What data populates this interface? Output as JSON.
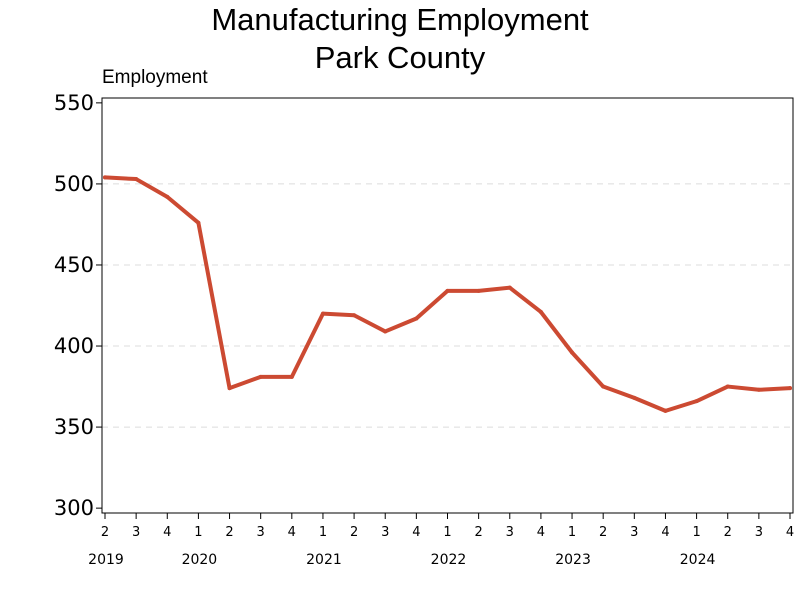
{
  "chart_data": {
    "type": "line",
    "title": [
      "Manufacturing Employment",
      "Park County"
    ],
    "ylabel": "Employment",
    "xlabel": "",
    "ylim": [
      297,
      553
    ],
    "yticks": [
      "300",
      "350",
      "400",
      "450",
      "500",
      "550"
    ],
    "grid": "horizontal dashed",
    "color": "#cc4a32",
    "x": [
      "2019 Q2",
      "2019 Q3",
      "2019 Q4",
      "2020 Q1",
      "2020 Q2",
      "2020 Q3",
      "2020 Q4",
      "2021 Q1",
      "2021 Q2",
      "2021 Q3",
      "2021 Q4",
      "2022 Q1",
      "2022 Q2",
      "2022 Q3",
      "2022 Q4",
      "2023 Q1",
      "2023 Q2",
      "2023 Q3",
      "2023 Q4",
      "2024 Q1",
      "2024 Q2",
      "2024 Q3",
      "2024 Q4"
    ],
    "quarter_labels": [
      "2",
      "3",
      "4",
      "1",
      "2",
      "3",
      "4",
      "1",
      "2",
      "3",
      "4",
      "1",
      "2",
      "3",
      "4",
      "1",
      "2",
      "3",
      "4",
      "1",
      "2",
      "3",
      "4"
    ],
    "year_labels": [
      {
        "label": "2019",
        "index": 0
      },
      {
        "label": "2020",
        "index": 3
      },
      {
        "label": "2021",
        "index": 7
      },
      {
        "label": "2022",
        "index": 11
      },
      {
        "label": "2023",
        "index": 15
      },
      {
        "label": "2024",
        "index": 19
      }
    ],
    "series": [
      {
        "values": [
          504,
          503,
          492,
          476,
          374,
          381,
          381,
          420,
          419,
          409,
          417,
          434,
          434,
          436,
          421,
          396,
          375,
          368,
          360,
          366,
          375,
          373,
          374
        ]
      }
    ]
  }
}
